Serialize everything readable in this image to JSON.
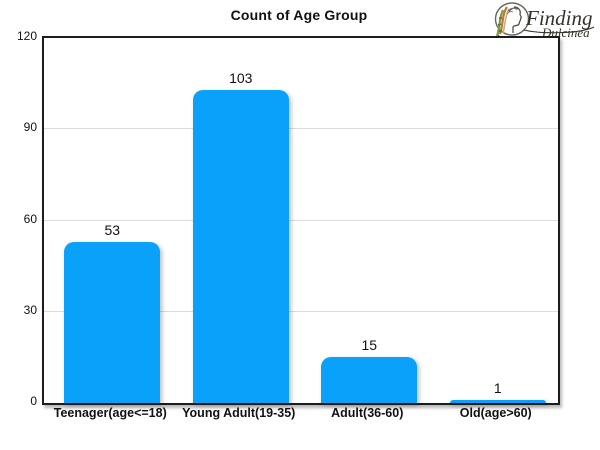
{
  "header": {
    "logo": {
      "line1": "Finding",
      "line2": "Dulcinea",
      "text_color": "#34312a",
      "wheat_colors": [
        "#c8742f",
        "#7d9c4a",
        "#c4ae82",
        "#4a6b33"
      ]
    }
  },
  "chart_data": {
    "type": "bar",
    "title": "Count of Age Group",
    "categories": [
      "Teenager(age<=18)",
      "Young Adult(19-35)",
      "Adult(36-60)",
      "Old(age>60)"
    ],
    "values": [
      53,
      103,
      15,
      1
    ],
    "value_labels": [
      "53",
      "103",
      "15",
      "1"
    ],
    "xlabel": "",
    "ylabel": "",
    "ylim": [
      0,
      120
    ],
    "yticks": [
      0,
      30,
      60,
      90,
      120
    ],
    "bar_color": "#09a1f9",
    "gridline_color": "#dcdcdc",
    "grid": "horizontal",
    "legend": "none",
    "background": "#ffffff"
  }
}
